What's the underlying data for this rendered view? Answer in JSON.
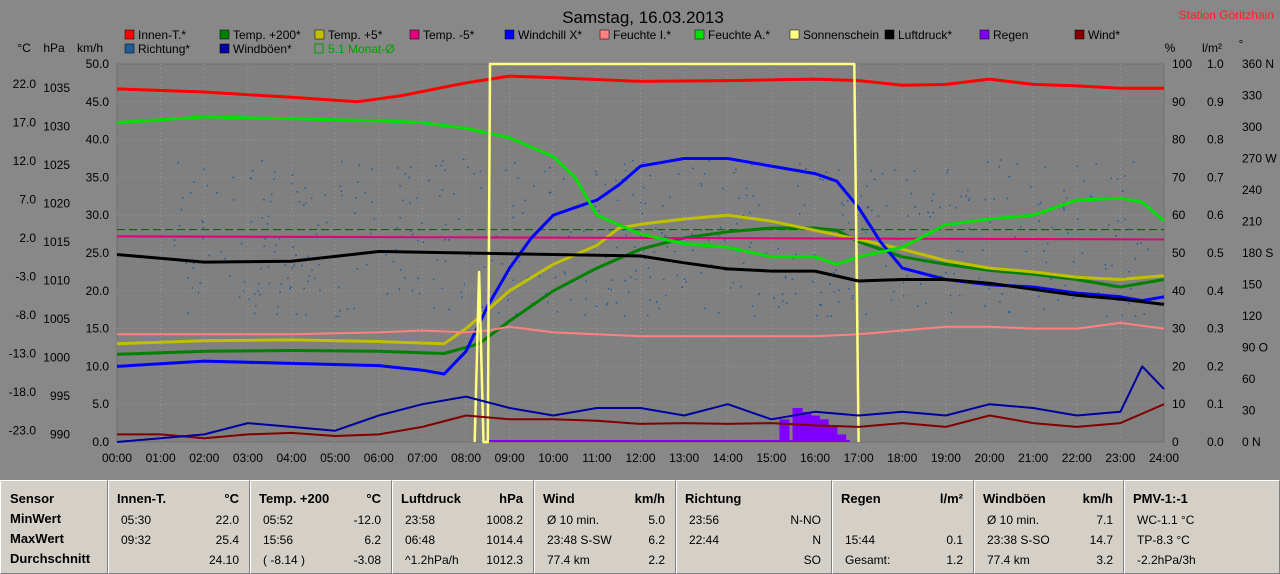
{
  "header": {
    "title": "Samstag, 16.03.2013",
    "station": "Station Göritzhain"
  },
  "axes": {
    "unit_labels_left": [
      "°C",
      "hPa",
      "km/h"
    ],
    "unit_labels_right": [
      "%",
      "l/m²",
      "°"
    ],
    "celsius_ticks": [
      "22.0",
      "17.0",
      "12.0",
      "7.0",
      "2.0",
      "-3.0",
      "-8.0",
      "-13.0",
      "-18.0",
      "-23.0"
    ],
    "hpa_ticks": [
      "1035",
      "1030",
      "1025",
      "1020",
      "1015",
      "1010",
      "1005",
      "1000",
      "995",
      "990"
    ],
    "kmh_ticks": [
      "50.0",
      "45.0",
      "40.0",
      "35.0",
      "30.0",
      "25.0",
      "20.0",
      "15.0",
      "10.0",
      "5.0",
      "0.0"
    ],
    "pct_ticks": [
      "100",
      "90",
      "80",
      "70",
      "60",
      "50",
      "40",
      "30",
      "20",
      "10",
      "0"
    ],
    "rain_ticks": [
      "1.0",
      "0.9",
      "0.8",
      "0.7",
      "0.6",
      "0.5",
      "0.4",
      "0.3",
      "0.2",
      "0.1",
      "0.0"
    ],
    "deg_ticks": [
      "360 N",
      "330",
      "300",
      "270 W",
      "240",
      "210",
      "180 S",
      "150",
      "120",
      "90 O",
      "60",
      "30",
      "0 N"
    ],
    "time_ticks": [
      "00:00",
      "01:00",
      "02:00",
      "03:00",
      "04:00",
      "05:00",
      "06:00",
      "07:00",
      "08:00",
      "09:00",
      "10:00",
      "11:00",
      "12:00",
      "13:00",
      "14:00",
      "15:00",
      "16:00",
      "17:00",
      "18:00",
      "19:00",
      "20:00",
      "21:00",
      "22:00",
      "23:00",
      "24:00"
    ]
  },
  "legend": [
    {
      "label": "Innen-T.*",
      "color": "#ff0000"
    },
    {
      "label": "Temp. +200*",
      "color": "#008000"
    },
    {
      "label": "Temp. +5*",
      "color": "#c0c000"
    },
    {
      "label": "Temp. -5*",
      "color": "#e0007a"
    },
    {
      "label": "Windchill X*",
      "color": "#0000ff"
    },
    {
      "label": "Feuchte I.*",
      "color": "#ff8080"
    },
    {
      "label": "Feuchte A.*",
      "color": "#00e000"
    },
    {
      "label": "Sonnenschein",
      "color": "#ffff80"
    },
    {
      "label": "Luftdruck*",
      "color": "#000000"
    },
    {
      "label": "Regen",
      "color": "#8000ff"
    },
    {
      "label": "Wind*",
      "color": "#800000"
    },
    {
      "label": "Richtung*",
      "color": "#1f5c99"
    },
    {
      "label": "Windböen*",
      "color": "#0000a0"
    },
    {
      "label": "5.1 Monat-Ø",
      "color": "#00a000"
    }
  ],
  "chart_data": {
    "type": "line",
    "title": "Samstag, 16.03.2013",
    "x_unit": "hour of day",
    "xlim": [
      0,
      24
    ],
    "scales": {
      "temp_C": [
        -23,
        27
      ],
      "pressure_hPa": [
        990,
        1040
      ],
      "speed_kmh": [
        0,
        50
      ],
      "percent": [
        0,
        100
      ],
      "rain_mm": [
        0,
        1
      ],
      "direction_deg": [
        0,
        360
      ]
    },
    "series": [
      {
        "name": "Innen-T.*",
        "axis": "temp_C",
        "color": "#ff0000",
        "x": [
          0,
          2,
          4,
          5.5,
          6.5,
          8,
          9,
          10,
          12,
          14,
          16,
          17,
          18,
          19,
          20,
          21,
          22,
          23,
          24
        ],
        "y": [
          23.7,
          23.3,
          22.6,
          22.0,
          22.8,
          24.5,
          25.4,
          25.2,
          24.7,
          24.8,
          25.0,
          24.8,
          24.2,
          24.3,
          25.0,
          24.3,
          24.1,
          23.8,
          23.8
        ]
      },
      {
        "name": "Temp. +200*",
        "axis": "temp_C",
        "color": "#008000",
        "x": [
          0,
          2,
          4,
          6,
          7.5,
          8.3,
          9,
          10,
          11,
          12,
          13,
          14,
          15,
          16,
          16.5,
          17,
          18,
          19,
          20,
          21,
          22,
          23,
          24
        ],
        "y": [
          -11.4,
          -11.0,
          -10.9,
          -11.0,
          -11.3,
          -10.0,
          -7.0,
          -3.0,
          0.0,
          2.5,
          4.0,
          4.8,
          5.3,
          5.3,
          5.0,
          3.5,
          1.5,
          0.5,
          -0.3,
          -0.8,
          -1.5,
          -2.5,
          -1.5
        ]
      },
      {
        "name": "Temp. +5*",
        "axis": "temp_C",
        "color": "#c0c000",
        "x": [
          0,
          2,
          4,
          6,
          7.5,
          8,
          8.5,
          9,
          10,
          11,
          11.5,
          12,
          13,
          14,
          15,
          16,
          17,
          18,
          19,
          20,
          21,
          22,
          23,
          24
        ],
        "y": [
          -10.0,
          -9.6,
          -9.5,
          -9.7,
          -10.0,
          -8.0,
          -5.5,
          -3.0,
          0.5,
          3.0,
          5.3,
          5.8,
          6.5,
          7.0,
          6.2,
          5.0,
          3.8,
          2.5,
          1.0,
          0.0,
          -0.5,
          -1.2,
          -1.5,
          -1.0
        ]
      },
      {
        "name": "Temp. -5*",
        "axis": "temp_C",
        "color": "#e0007a",
        "x": [
          0,
          24
        ],
        "y": [
          4.2,
          3.8
        ]
      },
      {
        "name": "Windchill X*",
        "axis": "temp_C",
        "color": "#0000ff",
        "x": [
          0,
          2,
          4,
          6,
          7,
          7.5,
          8,
          8.5,
          9,
          9.5,
          10,
          10.5,
          11,
          11.5,
          12,
          12.5,
          13,
          14,
          15,
          16,
          16.5,
          17,
          17.5,
          18,
          19,
          20,
          21,
          22,
          23,
          23.5,
          24
        ],
        "y": [
          -13.0,
          -12.3,
          -12.6,
          -12.9,
          -13.5,
          -14.0,
          -11.0,
          -5.0,
          0.0,
          4.0,
          7.0,
          8.0,
          9.0,
          11.0,
          13.5,
          14.0,
          14.5,
          14.5,
          13.5,
          12.5,
          11.5,
          8.0,
          3.5,
          0.0,
          -1.5,
          -2.2,
          -2.5,
          -3.3,
          -3.8,
          -4.3,
          -3.8
        ]
      },
      {
        "name": "Feuchte I.*",
        "axis": "percent",
        "color": "#ff8080",
        "x": [
          0,
          4,
          6,
          7,
          8,
          8.5,
          9,
          10,
          12,
          14,
          16,
          17,
          18,
          19,
          20,
          21,
          22,
          23,
          24
        ],
        "y": [
          28.5,
          28.5,
          29.0,
          29.5,
          29.0,
          29.5,
          30.5,
          29.0,
          28.0,
          28.0,
          28.0,
          28.5,
          29.5,
          30.5,
          30.5,
          30.0,
          30.0,
          31.5,
          30.0
        ]
      },
      {
        "name": "Feuchte A.*",
        "axis": "percent",
        "color": "#00e000",
        "x": [
          0,
          2,
          4,
          6,
          7,
          8,
          9,
          10,
          10.5,
          11,
          12,
          13,
          14,
          15,
          16,
          16.5,
          17,
          18,
          19,
          20,
          21,
          22,
          23,
          23.5,
          24
        ],
        "y": [
          84.5,
          86.0,
          85.5,
          85.0,
          84.5,
          83.0,
          80.5,
          75.5,
          70.0,
          60.0,
          55.0,
          52.5,
          51.5,
          49.0,
          49.0,
          47.0,
          49.0,
          51.5,
          57.5,
          59.0,
          60.0,
          64.0,
          64.5,
          63.5,
          58.5
        ]
      },
      {
        "name": "Sonnenschein",
        "axis": "percent",
        "color": "#ffff80",
        "x": [
          8.2,
          8.3,
          8.4,
          8.5,
          8.55,
          16.9,
          17.0
        ],
        "y": [
          0,
          45,
          0,
          0,
          100,
          100,
          0
        ]
      },
      {
        "name": "Luftdruck*",
        "axis": "pressure_hPa",
        "color": "#000000",
        "x": [
          0,
          2,
          4,
          6,
          8,
          10,
          12,
          13,
          14,
          15,
          16,
          17,
          18,
          19,
          20,
          21,
          22,
          23,
          24
        ],
        "y": [
          1014.8,
          1013.8,
          1013.9,
          1015.2,
          1015.0,
          1014.8,
          1014.6,
          1013.7,
          1012.9,
          1012.6,
          1012.6,
          1011.3,
          1011.5,
          1011.5,
          1011.0,
          1010.2,
          1009.4,
          1008.9,
          1008.2
        ]
      },
      {
        "name": "Regen",
        "axis": "rain_mm",
        "color": "#8000ff",
        "x": [
          15.3,
          15.6,
          15.8,
          16.0,
          16.2,
          16.4,
          16.6
        ],
        "y": [
          0.06,
          0.09,
          0.08,
          0.07,
          0.06,
          0.04,
          0.02
        ]
      },
      {
        "name": "Wind*",
        "axis": "speed_kmh",
        "color": "#800000",
        "x": [
          0,
          1,
          2,
          3,
          4,
          5,
          6,
          7,
          8,
          9,
          10,
          11,
          12,
          13,
          14,
          15,
          16,
          17,
          18,
          19,
          20,
          21,
          22,
          23,
          24
        ],
        "y": [
          1.0,
          1.0,
          0.5,
          1.0,
          1.2,
          0.8,
          1.0,
          2.0,
          3.5,
          3.0,
          3.0,
          2.8,
          2.4,
          2.5,
          2.4,
          2.5,
          2.2,
          2.0,
          2.5,
          2.0,
          3.5,
          2.5,
          2.0,
          2.5,
          5.0
        ]
      },
      {
        "name": "Windböen*",
        "axis": "speed_kmh",
        "color": "#0000a0",
        "x": [
          0,
          1,
          2,
          3,
          4,
          5,
          6,
          7,
          8,
          9,
          10,
          11,
          12,
          13,
          14,
          15,
          16,
          17,
          18,
          19,
          20,
          21,
          22,
          23,
          23.5,
          24
        ],
        "y": [
          0.0,
          0.5,
          1.0,
          2.5,
          2.0,
          1.5,
          3.5,
          5.0,
          6.0,
          4.5,
          3.5,
          4.5,
          4.5,
          3.5,
          5.0,
          3.0,
          4.0,
          3.5,
          4.0,
          3.5,
          5.0,
          4.5,
          3.5,
          4.0,
          10.0,
          7.0
        ]
      },
      {
        "name": "5.1 Monat-Ø",
        "axis": "temp_C",
        "color": "#00a000",
        "x": [
          0,
          24
        ],
        "y": [
          5.1,
          5.1
        ]
      }
    ]
  },
  "panels": [
    {
      "rows": [
        [
          "Sensor",
          "",
          ""
        ],
        [
          "MinWert",
          "",
          ""
        ],
        [
          "MaxWert",
          "",
          ""
        ],
        [
          "Durchschnitt",
          "",
          ""
        ],
        [
          "",
          "",
          ""
        ]
      ]
    },
    {
      "head_l": "Innen-T.",
      "head_r": "°C",
      "rows": [
        [
          "05:30",
          "22.0"
        ],
        [
          "09:32",
          "25.4"
        ],
        [
          "",
          "24.10"
        ]
      ]
    },
    {
      "head_l": "Temp. +200",
      "head_r": "°C",
      "rows": [
        [
          "05:52",
          "-12.0"
        ],
        [
          "15:56",
          "6.2"
        ],
        [
          "( -8.14 )",
          "-3.08"
        ]
      ]
    },
    {
      "head_l": "Luftdruck",
      "head_r": "hPa",
      "rows": [
        [
          "23:58",
          "1008.2"
        ],
        [
          "06:48",
          "1014.4"
        ],
        [
          "^1.2hPa/h",
          "1012.3"
        ]
      ]
    },
    {
      "head_l": "Wind",
      "head_r": "km/h",
      "rows": [
        [
          "Ø 10 min.",
          "5.0"
        ],
        [
          "23:48  S-SW",
          "6.2"
        ],
        [
          "77.4 km",
          "2.2"
        ]
      ]
    },
    {
      "head_l": "Richtung",
      "head_r": "",
      "rows": [
        [
          "23:56",
          "N-NO"
        ],
        [
          "22:44",
          "N"
        ],
        [
          "",
          "SO"
        ]
      ]
    },
    {
      "head_l": "Regen",
      "head_r": "l/m²",
      "rows": [
        [
          "",
          ""
        ],
        [
          "15:44",
          "0.1"
        ],
        [
          "Gesamt:",
          "1.2"
        ]
      ]
    },
    {
      "head_l": "Windböen",
      "head_r": "km/h",
      "rows": [
        [
          "Ø 10 min.",
          "7.1"
        ],
        [
          "23:38  S-SO",
          "14.7"
        ],
        [
          "77.4 km",
          "3.2"
        ]
      ]
    },
    {
      "head_l": "PMV-1:-1",
      "head_r": "",
      "rows": [
        [
          "WC-1.1 °C",
          ""
        ],
        [
          "TP-8.3 °C",
          ""
        ],
        [
          "-2.2hPa/3h",
          ""
        ]
      ]
    }
  ]
}
